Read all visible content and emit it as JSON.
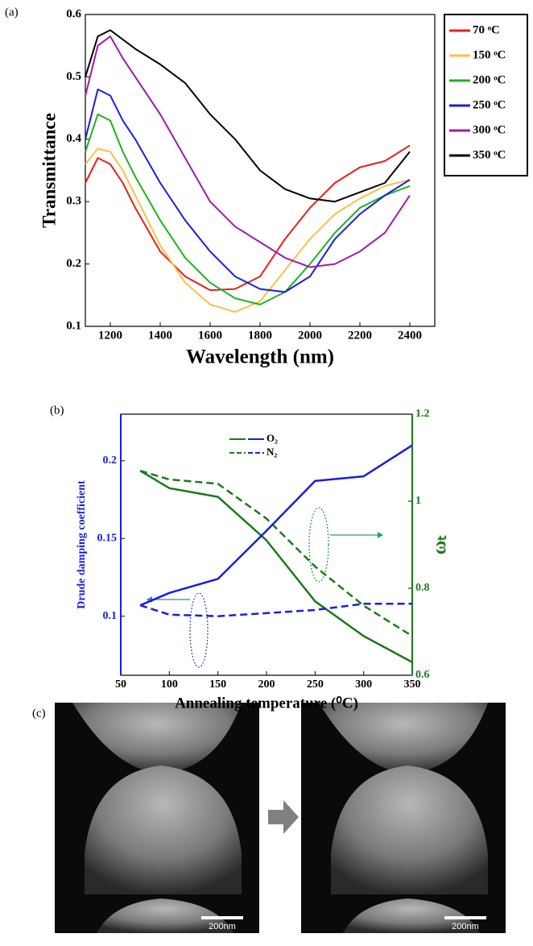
{
  "chart_data": [
    {
      "type": "line",
      "y_label": "Transmittance",
      "x_label": "Wavelength (nm)",
      "x": [
        1100,
        1150,
        1200,
        1250,
        1300,
        1400,
        1500,
        1600,
        1700,
        1800,
        1900,
        2000,
        2100,
        2200,
        2300,
        2400
      ],
      "xlim": [
        1100,
        2500
      ],
      "xticks": [
        1200,
        1400,
        1600,
        1800,
        2000,
        2200,
        2400
      ],
      "ylim": [
        0.1,
        0.6
      ],
      "yticks": [
        0.1,
        0.2,
        0.3,
        0.4,
        0.5,
        0.6
      ],
      "legend": "outside-right",
      "series": [
        {
          "name": "70 ᵒC",
          "color": "#e8201c",
          "values": [
            0.33,
            0.37,
            0.36,
            0.33,
            0.29,
            0.22,
            0.18,
            0.158,
            0.16,
            0.18,
            0.24,
            0.29,
            0.33,
            0.355,
            0.365,
            0.39
          ]
        },
        {
          "name": "150 ᵒC",
          "color": "#f9c146",
          "values": [
            0.36,
            0.385,
            0.38,
            0.35,
            0.31,
            0.23,
            0.17,
            0.135,
            0.123,
            0.14,
            0.19,
            0.24,
            0.28,
            0.305,
            0.325,
            0.335
          ]
        },
        {
          "name": "200 ᵒC",
          "color": "#1cb41c",
          "values": [
            0.38,
            0.44,
            0.43,
            0.38,
            0.34,
            0.27,
            0.21,
            0.17,
            0.145,
            0.135,
            0.155,
            0.2,
            0.25,
            0.29,
            0.31,
            0.325
          ]
        },
        {
          "name": "250 ᵒC",
          "color": "#1a1ee0",
          "values": [
            0.4,
            0.48,
            0.47,
            0.43,
            0.4,
            0.33,
            0.27,
            0.22,
            0.18,
            0.16,
            0.155,
            0.18,
            0.24,
            0.28,
            0.31,
            0.335
          ]
        },
        {
          "name": "300 ᵒC",
          "color": "#a21aa8",
          "values": [
            0.47,
            0.55,
            0.565,
            0.53,
            0.5,
            0.44,
            0.37,
            0.3,
            0.26,
            0.235,
            0.21,
            0.195,
            0.2,
            0.22,
            0.25,
            0.31
          ]
        },
        {
          "name": "350 ᵒC",
          "color": "#000000",
          "values": [
            0.5,
            0.565,
            0.575,
            0.56,
            0.545,
            0.52,
            0.49,
            0.44,
            0.4,
            0.35,
            0.32,
            0.305,
            0.3,
            0.315,
            0.33,
            0.38
          ]
        }
      ]
    },
    {
      "type": "line",
      "y_label": "Drude damping coefficient",
      "y2_label": "ωₜ",
      "x_label": "Annealing temperature (⁰C)",
      "x": [
        70,
        100,
        150,
        200,
        250,
        300,
        350
      ],
      "xlim": [
        50,
        350
      ],
      "xticks": [
        50,
        100,
        150,
        200,
        250,
        300,
        350
      ],
      "ylim": [
        0.062,
        0.23
      ],
      "yticks": [
        0.1,
        0.15,
        0.2
      ],
      "y2lim": [
        0.6,
        1.2
      ],
      "y2ticks": [
        0.6,
        0.8,
        1,
        1.2
      ],
      "legend": "top-center",
      "series": [
        {
          "name": "O₂",
          "color": "#1a7a1a",
          "axis": "y2",
          "linestyle": "solid",
          "values": [
            1.07,
            1.03,
            1.01,
            0.91,
            0.77,
            0.69,
            0.63
          ]
        },
        {
          "name": "N₂",
          "color": "#1a7a1a",
          "axis": "y2",
          "linestyle": "dashed",
          "values": [
            1.07,
            1.05,
            1.04,
            0.96,
            0.85,
            0.76,
            0.69
          ]
        },
        {
          "color": "#1a1ee0",
          "linestyle": "solid",
          "values": [
            0.107,
            0.115,
            0.124,
            0.155,
            0.187,
            0.19,
            0.21
          ]
        },
        {
          "color": "#1a1ee0",
          "linestyle": "dashed",
          "values": [
            0.107,
            0.101,
            0.1,
            0.102,
            0.104,
            0.108,
            0.108
          ]
        }
      ]
    }
  ],
  "figure": {
    "panel_labels": [
      "(a)",
      "(b)",
      "(c)"
    ],
    "scale_bars": [
      "200nm",
      "200nm"
    ]
  }
}
